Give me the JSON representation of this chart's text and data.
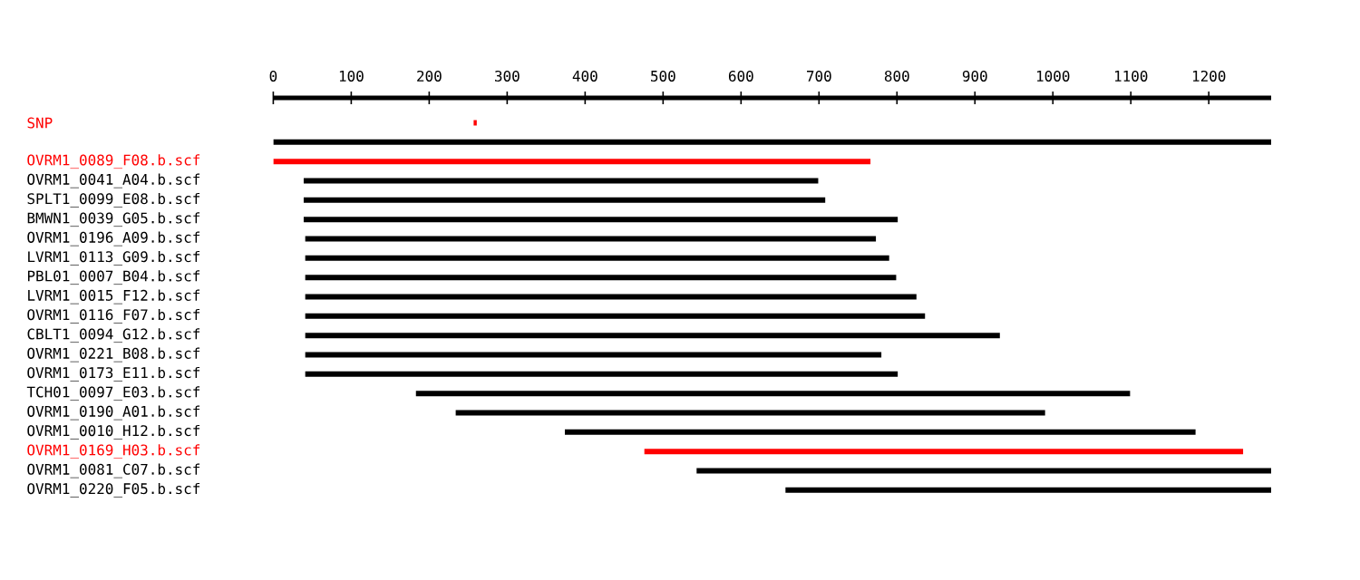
{
  "chart_data": {
    "type": "bar",
    "orientation": "horizontal",
    "categories": [
      "SNP",
      null,
      "OVRM1_0089_F08.b.scf",
      "OVRM1_0041_A04.b.scf",
      "SPLT1_0099_E08.b.scf",
      "BMWN1_0039_G05.b.scf",
      "OVRM1_0196_A09.b.scf",
      "LVRM1_0113_G09.b.scf",
      "PBL01_0007_B04.b.scf",
      "LVRM1_0015_F12.b.scf",
      "OVRM1_0116_F07.b.scf",
      "CBLT1_0094_G12.b.scf",
      "OVRM1_0221_B08.b.scf",
      "OVRM1_0173_E11.b.scf",
      "TCH01_0097_E03.b.scf",
      "OVRM1_0190_A01.b.scf",
      "OVRM1_0010_H12.b.scf",
      "OVRM1_0169_H03.b.scf",
      "OVRM1_0081_C07.b.scf",
      "OVRM1_0220_F05.b.scf"
    ],
    "base": [
      257,
      0,
      0,
      39,
      39,
      39,
      41,
      41,
      41,
      41,
      41,
      41,
      41,
      41,
      183,
      234,
      374,
      476,
      543,
      657
    ],
    "values": [
      4,
      1280,
      766,
      660,
      669,
      762,
      732,
      749,
      758,
      784,
      795,
      891,
      739,
      760,
      916,
      756,
      809,
      768,
      737,
      623
    ],
    "colors": [
      "#ff0000",
      "#000000",
      "#ff0000",
      "#000000",
      "#000000",
      "#000000",
      "#000000",
      "#000000",
      "#000000",
      "#000000",
      "#000000",
      "#000000",
      "#000000",
      "#000000",
      "#000000",
      "#000000",
      "#000000",
      "#ff0000",
      "#000000",
      "#000000"
    ],
    "xlim": [
      0,
      1280
    ],
    "xticks": [
      0,
      100,
      200,
      300,
      400,
      500,
      600,
      700,
      800,
      900,
      1000,
      1100,
      1200
    ]
  }
}
